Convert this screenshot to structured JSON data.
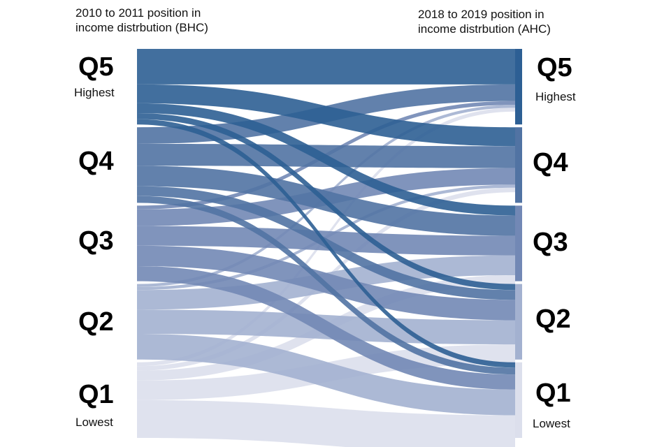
{
  "headers": {
    "left": [
      "2010 to 2011 position in",
      "income distrbution (BHC)"
    ],
    "right": [
      "2018 to 2019 position in",
      "income distrbution (AHC)"
    ]
  },
  "left_labels": [
    {
      "q": "Q5",
      "sub": "Highest"
    },
    {
      "q": "Q4",
      "sub": ""
    },
    {
      "q": "Q3",
      "sub": ""
    },
    {
      "q": "Q2",
      "sub": ""
    },
    {
      "q": "Q1",
      "sub": "Lowest"
    }
  ],
  "right_labels": [
    {
      "q": "Q5",
      "sub": "Highest"
    },
    {
      "q": "Q4",
      "sub": ""
    },
    {
      "q": "Q3",
      "sub": ""
    },
    {
      "q": "Q2",
      "sub": ""
    },
    {
      "q": "Q1",
      "sub": "Lowest"
    }
  ],
  "colors": {
    "Q5": "#2d5f94",
    "Q4": "#5173a3",
    "Q3": "#7288b5",
    "Q2": "#a3b1d0",
    "Q1": "#dcdfec"
  },
  "flows": [
    {
      "from": "Q5",
      "to": "Q5",
      "share": 0.47
    },
    {
      "from": "Q5",
      "to": "Q4",
      "share": 0.25
    },
    {
      "from": "Q5",
      "to": "Q3",
      "share": 0.13
    },
    {
      "from": "Q5",
      "to": "Q2",
      "share": 0.08
    },
    {
      "from": "Q5",
      "to": "Q1",
      "share": 0.07
    },
    {
      "from": "Q4",
      "to": "Q5",
      "share": 0.22
    },
    {
      "from": "Q4",
      "to": "Q4",
      "share": 0.29
    },
    {
      "from": "Q4",
      "to": "Q3",
      "share": 0.27
    },
    {
      "from": "Q4",
      "to": "Q2",
      "share": 0.13
    },
    {
      "from": "Q4",
      "to": "Q1",
      "share": 0.09
    },
    {
      "from": "Q3",
      "to": "Q5",
      "share": 0.05
    },
    {
      "from": "Q3",
      "to": "Q4",
      "share": 0.22
    },
    {
      "from": "Q3",
      "to": "Q3",
      "share": 0.26
    },
    {
      "from": "Q3",
      "to": "Q2",
      "share": 0.27
    },
    {
      "from": "Q3",
      "to": "Q1",
      "share": 0.2
    },
    {
      "from": "Q2",
      "to": "Q5",
      "share": 0.04
    },
    {
      "from": "Q2",
      "to": "Q4",
      "share": 0.04
    },
    {
      "from": "Q2",
      "to": "Q3",
      "share": 0.26
    },
    {
      "from": "Q2",
      "to": "Q2",
      "share": 0.32
    },
    {
      "from": "Q2",
      "to": "Q1",
      "share": 0.34
    },
    {
      "from": "Q1",
      "to": "Q5",
      "share": 0.05
    },
    {
      "from": "Q1",
      "to": "Q4",
      "share": 0.06
    },
    {
      "from": "Q1",
      "to": "Q3",
      "share": 0.13
    },
    {
      "from": "Q1",
      "to": "Q2",
      "share": 0.26
    },
    {
      "from": "Q1",
      "to": "Q1",
      "share": 0.5
    }
  ]
}
